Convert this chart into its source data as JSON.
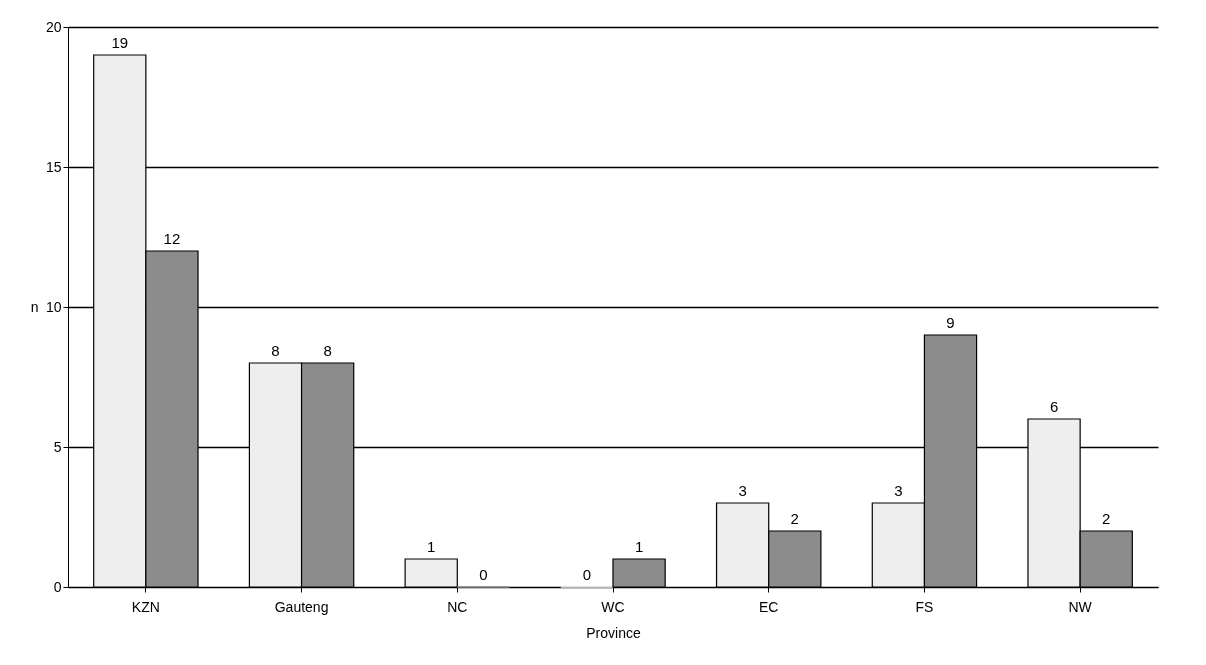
{
  "chart_data": {
    "type": "bar",
    "xlabel": "Province",
    "ylabel": "n",
    "categories": [
      "KZN",
      "Gauteng",
      "NC",
      "WC",
      "EC",
      "FS",
      "NW"
    ],
    "series": [
      {
        "color": "#eeeeee",
        "values": [
          19,
          8,
          1,
          0,
          3,
          3,
          6
        ]
      },
      {
        "color": "#8c8c8c",
        "values": [
          12,
          8,
          0,
          1,
          2,
          9,
          2
        ]
      }
    ],
    "ylim": [
      0,
      20
    ],
    "yticks": [
      0,
      5,
      10,
      15,
      20
    ],
    "grid": "y",
    "data_labels": true
  }
}
